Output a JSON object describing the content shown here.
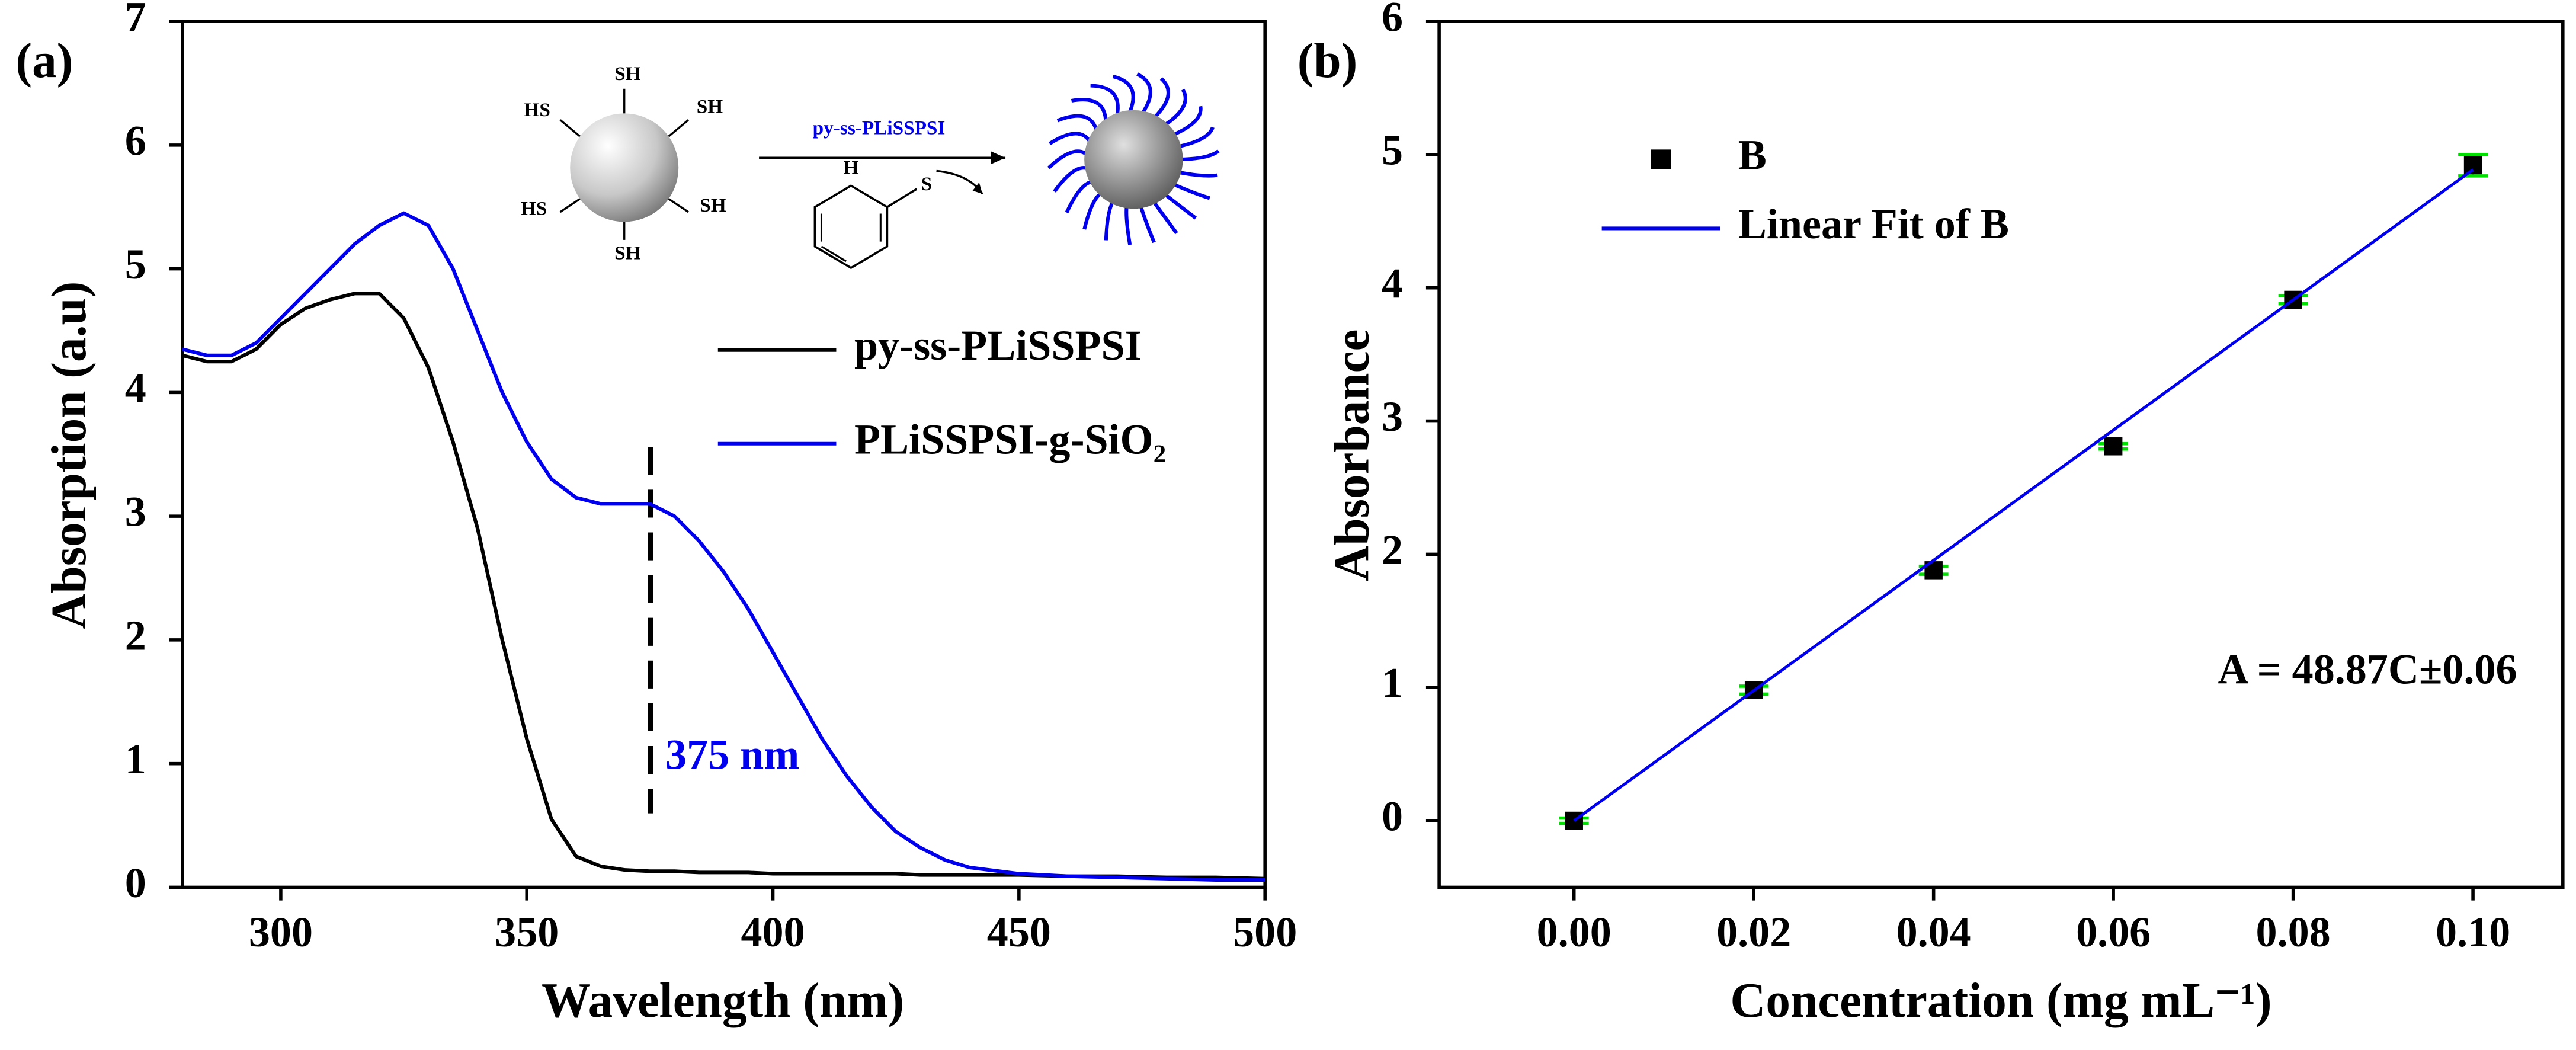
{
  "chart_data": [
    {
      "type": "line",
      "panel_label": "(a)",
      "x_label": "Wavelength (nm)",
      "y_label": "Absorption (a.u)",
      "x": [
        280,
        285,
        290,
        295,
        300,
        305,
        310,
        315,
        320,
        325,
        330,
        335,
        340,
        345,
        350,
        355,
        360,
        365,
        370,
        375,
        380,
        385,
        390,
        395,
        400,
        405,
        410,
        415,
        420,
        425,
        430,
        435,
        440,
        450,
        460,
        470,
        480,
        490,
        500
      ],
      "series": [
        {
          "name": "py-ss-PLiSSPSI",
          "color": "#000000",
          "values": [
            4.3,
            4.25,
            4.25,
            4.35,
            4.55,
            4.68,
            4.75,
            4.8,
            4.8,
            4.6,
            4.2,
            3.6,
            2.9,
            2.0,
            1.2,
            0.55,
            0.25,
            0.17,
            0.14,
            0.13,
            0.13,
            0.12,
            0.12,
            0.12,
            0.11,
            0.11,
            0.11,
            0.11,
            0.11,
            0.11,
            0.1,
            0.1,
            0.1,
            0.1,
            0.09,
            0.09,
            0.08,
            0.08,
            0.07
          ]
        },
        {
          "name": "PLiSSPSI-g-SiO₂",
          "color": "#0000ee",
          "values": [
            4.35,
            4.3,
            4.3,
            4.4,
            4.6,
            4.8,
            5.0,
            5.2,
            5.35,
            5.45,
            5.35,
            5.0,
            4.5,
            4.0,
            3.6,
            3.3,
            3.15,
            3.1,
            3.1,
            3.1,
            3.0,
            2.8,
            2.55,
            2.25,
            1.9,
            1.55,
            1.2,
            0.9,
            0.65,
            0.45,
            0.32,
            0.22,
            0.16,
            0.11,
            0.09,
            0.08,
            0.07,
            0.06,
            0.06
          ]
        }
      ],
      "xlim": [
        280,
        500
      ],
      "xticks": [
        300,
        350,
        400,
        450,
        500
      ],
      "ylim": [
        0,
        7
      ],
      "yticks": [
        0,
        1,
        2,
        3,
        4,
        5,
        6,
        7
      ],
      "annotation": "375 nm",
      "inset": {
        "reagent": "py-ss-PLiSSPSI",
        "thiol_labels": [
          "SH",
          "HS",
          "SH",
          "HS",
          "SH",
          "SH"
        ],
        "ring_labels": [
          "H",
          "S"
        ]
      }
    },
    {
      "type": "scatter",
      "panel_label": "(b)",
      "x_label": "Concentration (mg mL⁻¹)",
      "y_label": "Absorbance",
      "series": [
        {
          "name": "B",
          "color": "#000000",
          "error_color": "#00e000",
          "x": [
            0,
            0.02,
            0.04,
            0.06,
            0.08,
            0.1
          ],
          "values": [
            0,
            0.98,
            1.88,
            2.81,
            3.91,
            4.92
          ],
          "errors": [
            0.02,
            0.03,
            0.03,
            0.02,
            0.03,
            0.08
          ]
        },
        {
          "name": "Linear Fit of B",
          "type": "line",
          "color": "#0000ee",
          "x": [
            0,
            0.1
          ],
          "values": [
            0,
            4.887
          ]
        }
      ],
      "xlim": [
        -0.015,
        0.11
      ],
      "xticks": [
        {
          "value": 0,
          "label": "0.00"
        },
        {
          "value": 0.02,
          "label": "0.02"
        },
        {
          "value": 0.04,
          "label": "0.04"
        },
        {
          "value": 0.06,
          "label": "0.06"
        },
        {
          "value": 0.08,
          "label": "0.08"
        },
        {
          "value": 0.1,
          "label": "0.10"
        }
      ],
      "ylim": [
        -0.5,
        6
      ],
      "yticks": [
        0,
        1,
        2,
        3,
        4,
        5,
        6
      ],
      "annotation": "A = 48.87C±0.06"
    }
  ]
}
